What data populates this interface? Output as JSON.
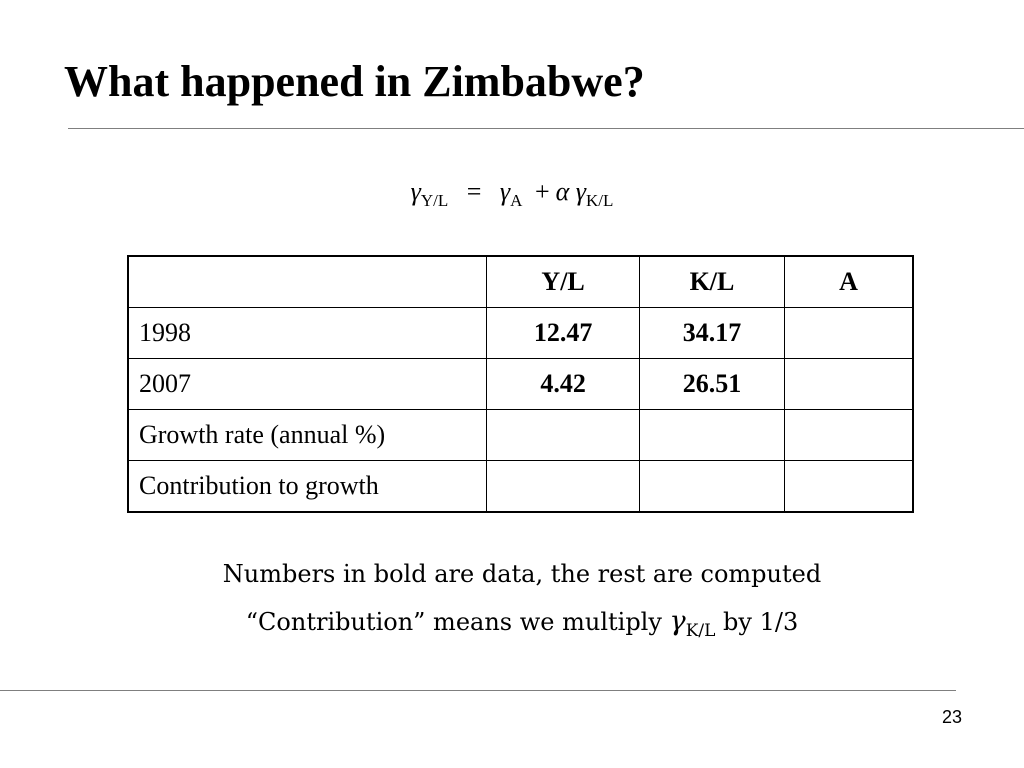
{
  "slide": {
    "title": "What happened in Zimbabwe?",
    "page_number": "23"
  },
  "formula": {
    "lhs_symbol": "γ",
    "lhs_sub": "Y/L",
    "equals": "=",
    "term1_symbol": "γ",
    "term1_sub": "A",
    "plus": "+",
    "alpha": "α",
    "term2_symbol": "γ",
    "term2_sub": "K/L"
  },
  "table": {
    "headers": [
      "",
      "Y/L",
      "K/L",
      "A"
    ],
    "rows": [
      {
        "label": "1998",
        "yl": "12.47",
        "kl": "34.17",
        "a": ""
      },
      {
        "label": "2007",
        "yl": "4.42",
        "kl": "26.51",
        "a": ""
      },
      {
        "label": "Growth rate (annual %)",
        "yl": "",
        "kl": "",
        "a": ""
      },
      {
        "label": "Contribution to growth",
        "yl": "",
        "kl": "",
        "a": ""
      }
    ]
  },
  "notes": {
    "line1": "Numbers in bold are data, the rest are computed",
    "line2_before": "“Contribution” means we multiply ",
    "line2_symbol": "γ",
    "line2_sub": "K/L",
    "line2_after": " by 1/3"
  }
}
